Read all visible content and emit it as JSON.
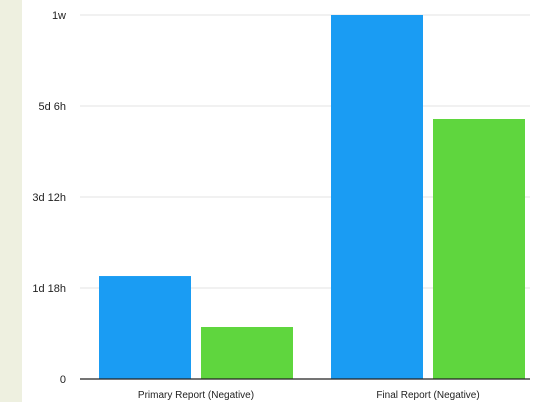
{
  "chart_data": {
    "type": "bar",
    "title": "",
    "xlabel": "",
    "ylabel": "",
    "categories": [
      "Primary Report (Negative)",
      "Final Report (Negative)"
    ],
    "series": [
      {
        "values": [
          1.98,
          7.0
        ],
        "color": "#1a9cf3"
      },
      {
        "values": [
          1.0,
          5.0
        ],
        "color": "#5fd63e"
      }
    ],
    "y_unit": "days",
    "ylim": [
      0,
      7
    ],
    "y_ticks": [
      {
        "value": 0,
        "label": "0"
      },
      {
        "value": 1.75,
        "label": "1d 18h"
      },
      {
        "value": 3.5,
        "label": "3d 12h"
      },
      {
        "value": 5.25,
        "label": "5d 6h"
      },
      {
        "value": 7,
        "label": "1w"
      }
    ],
    "grid": true,
    "legend": "none"
  },
  "colors": {
    "page_background": "#eef0e0",
    "plot_background": "#ffffff",
    "grid": "#e3e3e3",
    "axis": "#222222"
  }
}
